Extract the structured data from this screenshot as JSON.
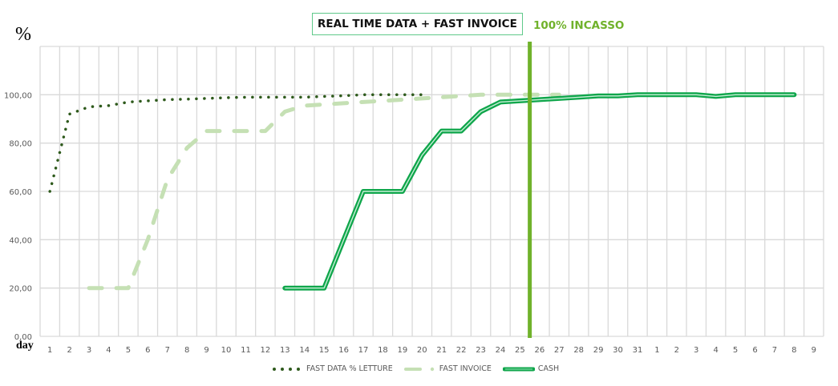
{
  "chart_data": {
    "type": "line",
    "title": "REAL TIME DATA + FAST INVOICE",
    "annotation": {
      "label": "100% INCASSO",
      "x_position_between": [
        "25",
        "26"
      ],
      "color": "#70b22b"
    },
    "ylabel": "%",
    "xlabel": "day",
    "ylim": [
      0,
      120
    ],
    "yticks": [
      "0,00",
      "20,00",
      "40,00",
      "60,00",
      "80,00",
      "100,00"
    ],
    "grid": true,
    "legend_position": "bottom",
    "categories": [
      "1",
      "2",
      "3",
      "4",
      "5",
      "6",
      "7",
      "8",
      "9",
      "10",
      "11",
      "12",
      "13",
      "14",
      "15",
      "16",
      "17",
      "18",
      "19",
      "20",
      "21",
      "22",
      "23",
      "24",
      "25",
      "26",
      "27",
      "28",
      "29",
      "30",
      "31",
      "1",
      "2",
      "3",
      "4",
      "5",
      "6",
      "7",
      "8",
      "9"
    ],
    "series": [
      {
        "name": "FAST DATA % LETTURE",
        "color": "#2e5a1c",
        "style": "dotted",
        "values": [
          60,
          92,
          95,
          95.5,
          97,
          97.5,
          98,
          98.2,
          98.5,
          98.8,
          99,
          99,
          99,
          99,
          99.3,
          99.6,
          100,
          100,
          100,
          100,
          null,
          null,
          null,
          null,
          null,
          null,
          null,
          null,
          null,
          null,
          null,
          null,
          null,
          null,
          null,
          null,
          null,
          null,
          null,
          null
        ]
      },
      {
        "name": "FAST INVOICE",
        "color": "#c5e0b4",
        "style": "dashed",
        "values": [
          null,
          null,
          20,
          20,
          20,
          40,
          65,
          78,
          85,
          85,
          85,
          85,
          93,
          95.5,
          96,
          96.5,
          97,
          97.5,
          98,
          98.5,
          99,
          99.5,
          100,
          100,
          100,
          100,
          100,
          null,
          null,
          null,
          null,
          null,
          null,
          null,
          null,
          null,
          null,
          null,
          null,
          null
        ]
      },
      {
        "name": "CASH",
        "color": "#0fa64b",
        "style": "double",
        "values": [
          null,
          null,
          null,
          null,
          null,
          null,
          null,
          null,
          null,
          null,
          null,
          null,
          20,
          20,
          20,
          40,
          60,
          60,
          60,
          75,
          85,
          85,
          93,
          97,
          97.5,
          98,
          98.5,
          99,
          99.5,
          99.5,
          100,
          100,
          100,
          100,
          99.3,
          100,
          100,
          100,
          100,
          null
        ]
      }
    ]
  }
}
